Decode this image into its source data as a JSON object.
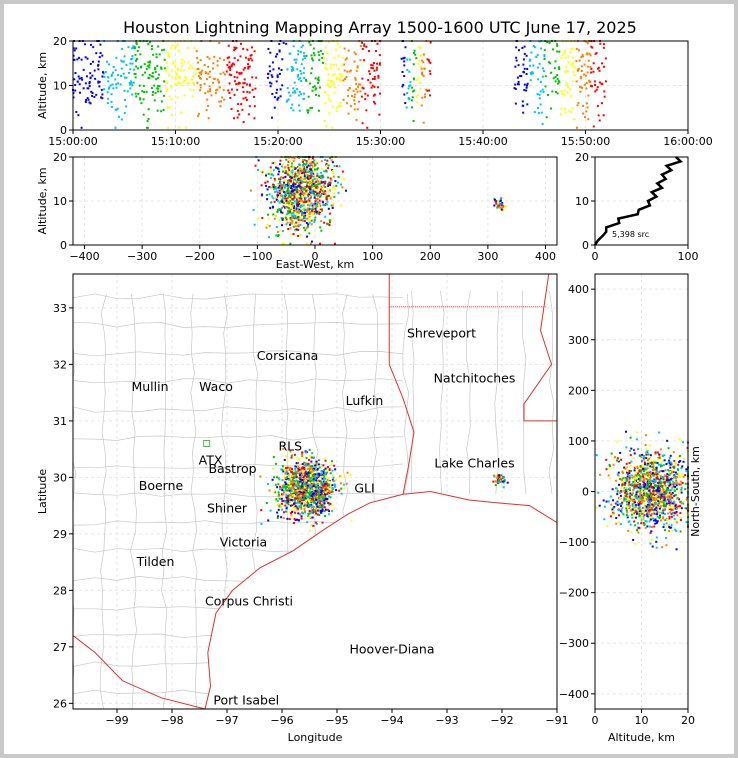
{
  "chart_data": {
    "title": "Houston Lightning Mapping Array 1500-1600 UTC June 17, 2025",
    "colors": [
      "#0000ff",
      "#00c0ff",
      "#00c000",
      "#ffff00",
      "#ff8000",
      "#ff0000"
    ],
    "panels": [
      {
        "name": "altitude-time",
        "type": "scatter",
        "ylabel": "Altitude, km",
        "xlim_minutes": [
          0,
          60
        ],
        "ylim": [
          0,
          20
        ],
        "xticks": [
          "15:00:00",
          "15:10:00",
          "15:20:00",
          "15:30:00",
          "15:40:00",
          "15:50:00",
          "16:00:00"
        ],
        "yticks": [
          "0",
          "10",
          "20"
        ],
        "activity_windows_minutes": [
          [
            0,
            18
          ],
          [
            19,
            30
          ],
          [
            32,
            35
          ],
          [
            43,
            52
          ]
        ]
      },
      {
        "name": "altitude-eastwest",
        "type": "scatter",
        "xlabel": "East-West, km",
        "ylabel": "Altitude, km",
        "xlim": [
          -420,
          420
        ],
        "ylim": [
          0,
          20
        ],
        "xticks": [
          "−400",
          "−300",
          "−200",
          "−100",
          "0",
          "100",
          "200",
          "300",
          "400"
        ],
        "yticks": [
          "0",
          "10",
          "20"
        ],
        "clusters": [
          {
            "x_center": -25,
            "x_spread": 55,
            "z_center": 12,
            "z_spread": 7
          },
          {
            "x_center": 320,
            "x_spread": 10,
            "z_center": 9,
            "z_spread": 1.5
          }
        ]
      },
      {
        "name": "altitude-histogram",
        "type": "line",
        "xlim": [
          0,
          100
        ],
        "ylim": [
          0,
          20
        ],
        "xticks": [
          "0",
          "100"
        ],
        "yticks": [
          "0",
          "10",
          "20"
        ],
        "annotation": "5,398 src",
        "profile": [
          [
            0,
            0
          ],
          [
            3,
            1
          ],
          [
            8,
            2
          ],
          [
            12,
            3
          ],
          [
            15,
            4
          ],
          [
            22,
            5
          ],
          [
            28,
            6
          ],
          [
            42,
            7
          ],
          [
            50,
            8
          ],
          [
            55,
            9
          ],
          [
            60,
            10
          ],
          [
            62,
            11
          ],
          [
            64,
            12
          ],
          [
            68,
            13
          ],
          [
            70,
            14
          ],
          [
            72,
            15
          ],
          [
            75,
            16
          ],
          [
            78,
            17
          ],
          [
            80,
            18
          ],
          [
            88,
            19
          ],
          [
            90,
            20
          ]
        ]
      },
      {
        "name": "lat-lon-map",
        "type": "scatter",
        "xlabel": "Longitude",
        "ylabel": "Latitude",
        "xlim": [
          -99.8,
          -91
        ],
        "ylim": [
          25.9,
          33.6
        ],
        "xticks": [
          "−99",
          "−98",
          "−97",
          "−96",
          "−95",
          "−94",
          "−93",
          "−92",
          "−91"
        ],
        "yticks": [
          "26",
          "27",
          "28",
          "29",
          "30",
          "31",
          "32",
          "33"
        ],
        "cities": [
          {
            "name": "Shreveport",
            "lon": -93.1,
            "lat": 32.55,
            "color": "#000000"
          },
          {
            "name": "Corsicana",
            "lon": -95.9,
            "lat": 32.15,
            "color": "#000000"
          },
          {
            "name": "Natchitoches",
            "lon": -92.5,
            "lat": 31.75,
            "color": "#000000"
          },
          {
            "name": "Mullin",
            "lon": -98.4,
            "lat": 31.6,
            "color": "#e8905a"
          },
          {
            "name": "Waco",
            "lon": -97.2,
            "lat": 31.6,
            "color": "#000000"
          },
          {
            "name": "Lufkin",
            "lon": -94.5,
            "lat": 31.35,
            "color": "#000000"
          },
          {
            "name": "RLS",
            "lon": -95.85,
            "lat": 30.55,
            "color": "#000000"
          },
          {
            "name": "ATX",
            "lon": -97.3,
            "lat": 30.3,
            "color": "#e8905a"
          },
          {
            "name": "Bastrop",
            "lon": -96.9,
            "lat": 30.15,
            "color": "#000000"
          },
          {
            "name": "Lake Charles",
            "lon": -92.5,
            "lat": 30.25,
            "color": "#000000"
          },
          {
            "name": "Boerne",
            "lon": -98.2,
            "lat": 29.85,
            "color": "#000000"
          },
          {
            "name": "GLI",
            "lon": -94.5,
            "lat": 29.8,
            "color": "#e8a040"
          },
          {
            "name": "Shiner",
            "lon": -97.0,
            "lat": 29.45,
            "color": "#000000"
          },
          {
            "name": "Victoria",
            "lon": -96.7,
            "lat": 28.85,
            "color": "#000000"
          },
          {
            "name": "Tilden",
            "lon": -98.3,
            "lat": 28.5,
            "color": "#000000"
          },
          {
            "name": "Corpus Christi",
            "lon": -96.6,
            "lat": 27.8,
            "color": "#000000"
          },
          {
            "name": "Hoover-Diana",
            "lon": -94.0,
            "lat": 26.95,
            "color": "#1010e0"
          },
          {
            "name": "Port Isabel",
            "lon": -96.65,
            "lat": 26.05,
            "color": "#000000"
          }
        ],
        "clusters": [
          {
            "lon": -95.55,
            "lat": 29.8,
            "spread": 0.5
          },
          {
            "lon": -92.05,
            "lat": 29.95,
            "spread": 0.12
          }
        ]
      },
      {
        "name": "northsouth-altitude",
        "type": "scatter",
        "xlabel": "Altitude, km",
        "ylabel": "North-South, km",
        "xlim": [
          0,
          20
        ],
        "ylim": [
          -430,
          430
        ],
        "xticks": [
          "0",
          "10",
          "20"
        ],
        "yticks": [
          "−400",
          "−300",
          "−200",
          "−100",
          "0",
          "100",
          "200",
          "300",
          "400"
        ]
      }
    ]
  }
}
